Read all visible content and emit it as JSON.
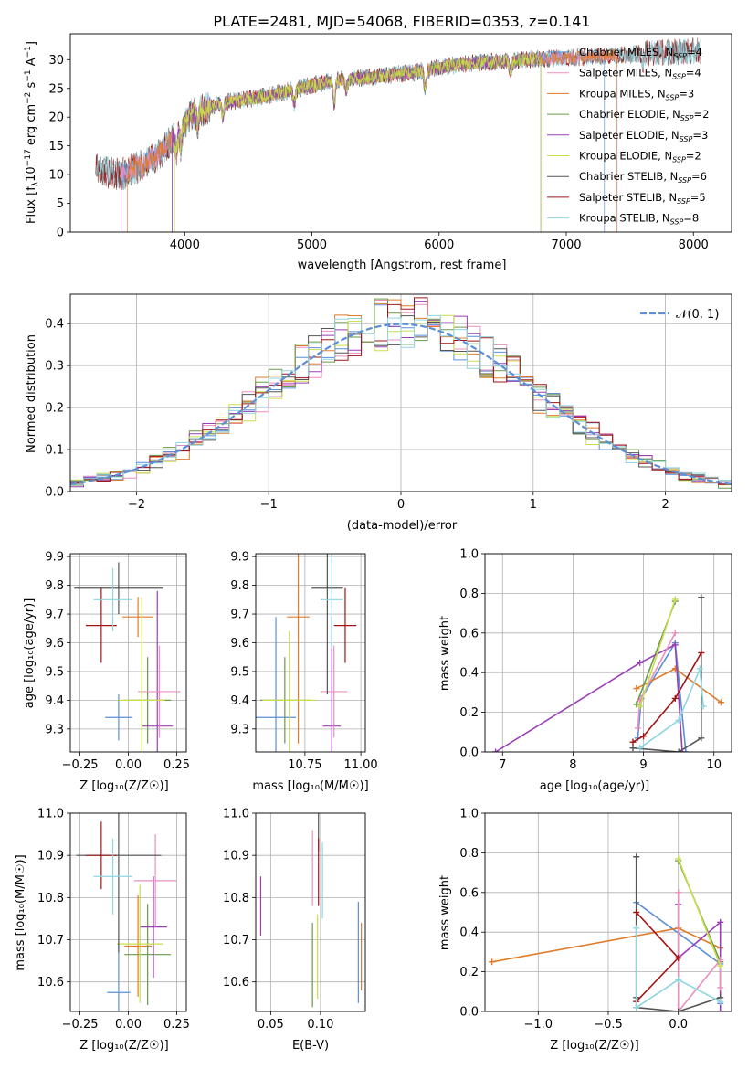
{
  "figure_title": "PLATE=2481, MJD=54068, FIBERID=0353, z=0.141",
  "colors": {
    "c1": "#5b8fd6",
    "c2": "#e07b2a",
    "c3": "#6a9a4a",
    "c4": "#9b3fb8",
    "c5": "#e98fc0",
    "c6": "#c9dd4a",
    "c7": "#555555",
    "c8": "#a31515",
    "c9": "#8fd6df",
    "grid": "#b0b0b0",
    "gaussian": "#5b8fd6"
  },
  "chart_data": [
    {
      "id": "spectrum",
      "type": "line",
      "xlabel": "wavelength [Angstrom, rest frame]",
      "ylabel": "Flux [f_λ10^-17 erg cm^-2 s^-1 A^-1]",
      "xlim": [
        3100,
        8300
      ],
      "ylim": [
        0,
        34.5
      ],
      "xticks": [
        4000,
        5000,
        6000,
        7000,
        8000
      ],
      "yticks": [
        0,
        5,
        10,
        15,
        20,
        25,
        30
      ],
      "grid": false,
      "legend_position": "top-right",
      "continuum": [
        [
          3300,
          10.8
        ],
        [
          3500,
          10.0
        ],
        [
          3650,
          11.5
        ],
        [
          3800,
          13.5
        ],
        [
          3950,
          17.5
        ],
        [
          4050,
          20.5
        ],
        [
          4300,
          22.5
        ],
        [
          4600,
          23.5
        ],
        [
          4900,
          25.0
        ],
        [
          5200,
          26.5
        ],
        [
          5500,
          27.0
        ],
        [
          5800,
          27.8
        ],
        [
          6100,
          29.0
        ],
        [
          6400,
          29.6
        ],
        [
          6700,
          30.0
        ],
        [
          7000,
          30.3
        ],
        [
          7300,
          30.6
        ],
        [
          7600,
          31.1
        ],
        [
          7900,
          31.4
        ],
        [
          8050,
          31.5
        ]
      ],
      "series": [
        {
          "name": "Chabrier MILES",
          "nssp": "4",
          "color": "c1",
          "range": [
            3500,
            7300
          ]
        },
        {
          "name": "Salpeter MILES",
          "nssp": "4",
          "color": "c5",
          "range": [
            3500,
            7400
          ]
        },
        {
          "name": "Kroupa MILES",
          "nssp": "3",
          "color": "c2",
          "range": [
            3550,
            7400
          ]
        },
        {
          "name": "Chabrier ELODIE",
          "nssp": "2",
          "color": "c3",
          "range": [
            3900,
            6800
          ]
        },
        {
          "name": "Salpeter ELODIE",
          "nssp": "3",
          "color": "c4",
          "range": [
            3900,
            6800
          ]
        },
        {
          "name": "Kroupa ELODIE",
          "nssp": "2",
          "color": "c6",
          "range": [
            3920,
            6800
          ]
        },
        {
          "name": "Chabrier STELIB",
          "nssp": "6",
          "color": "c7",
          "range": [
            3300,
            8050
          ]
        },
        {
          "name": "Salpeter STELIB",
          "nssp": "5",
          "color": "c8",
          "range": [
            3300,
            8050
          ]
        },
        {
          "name": "Kroupa STELIB",
          "nssp": "8",
          "color": "c9",
          "range": [
            3300,
            8050
          ]
        }
      ]
    },
    {
      "id": "residuals",
      "type": "histogram",
      "xlabel": "(data-model)/error",
      "ylabel": "Normed distribution",
      "xlim": [
        -2.5,
        2.5
      ],
      "ylim": [
        0,
        0.47
      ],
      "xticks": [
        -2,
        -1,
        0,
        1,
        2
      ],
      "yticks": [
        0.0,
        0.1,
        0.2,
        0.3,
        0.4
      ],
      "grid": true,
      "legend": "𝒩(0, 1)",
      "legend_position": "top-right",
      "bin_width": 0.1,
      "series_colors": [
        "c1",
        "c5",
        "c2",
        "c3",
        "c4",
        "c6",
        "c7",
        "c8",
        "c9"
      ]
    },
    {
      "id": "age_vs_Z",
      "type": "errorbar",
      "xlabel": "Z [log₁₀(Z/Z☉)]",
      "ylabel": "age  [log₁₀(age/yr)]",
      "xlim": [
        -0.3,
        0.3
      ],
      "ylim": [
        9.22,
        9.91
      ],
      "xticks": [
        -0.25,
        0.0,
        0.25
      ],
      "xticklabels": [
        "−0.25",
        "0.00",
        "0.25"
      ],
      "yticks": [
        9.3,
        9.4,
        9.5,
        9.6,
        9.7,
        9.8,
        9.9
      ],
      "grid": true,
      "points": [
        {
          "color": "c1",
          "x": -0.05,
          "xerr": 0.07,
          "y": 9.34,
          "yerr": 0.08
        },
        {
          "color": "c2",
          "x": 0.05,
          "xerr": 0.08,
          "y": 9.69,
          "yerr": 0.07
        },
        {
          "color": "c3",
          "x": 0.1,
          "xerr": 0.12,
          "y": 9.4,
          "yerr": 0.15
        },
        {
          "color": "c4",
          "x": 0.15,
          "xerr": 0.08,
          "y": 9.31,
          "yerr": 0.47
        },
        {
          "color": "c5",
          "x": 0.16,
          "xerr": 0.11,
          "y": 9.43,
          "yerr": 0.16
        },
        {
          "color": "c6",
          "x": 0.07,
          "xerr": 0.12,
          "y": 9.4,
          "yerr": 0.36
        },
        {
          "color": "c7",
          "x": -0.05,
          "xerr": 0.23,
          "y": 9.79,
          "yerr": 0.09
        },
        {
          "color": "c8",
          "x": -0.14,
          "xerr": 0.08,
          "y": 9.66,
          "yerr": 0.13
        },
        {
          "color": "c9",
          "x": -0.08,
          "xerr": 0.1,
          "y": 9.75,
          "yerr": 0.11
        }
      ]
    },
    {
      "id": "age_vs_mass",
      "type": "errorbar",
      "xlabel": "mass [log₁₀(M/M☉)]",
      "xlim": [
        10.53,
        11.02
      ],
      "ylim": [
        9.22,
        9.91
      ],
      "xticks": [
        10.75,
        11.0
      ],
      "xticklabels": [
        "10.75",
        "11.00"
      ],
      "yticks": [
        9.3,
        9.4,
        9.5,
        9.6,
        9.7,
        9.8,
        9.9
      ],
      "grid": true,
      "points": [
        {
          "color": "c1",
          "x": 10.62,
          "xerr": 0.09,
          "y": 9.34,
          "yerr": 0.35
        },
        {
          "color": "c2",
          "x": 10.72,
          "xerr": 0.05,
          "y": 9.69,
          "yerr": 0.44
        },
        {
          "color": "c3",
          "x": 10.66,
          "xerr": 0.11,
          "y": 9.4,
          "yerr": 0.15
        },
        {
          "color": "c4",
          "x": 10.87,
          "xerr": 0.04,
          "y": 9.31,
          "yerr": 0.38
        },
        {
          "color": "c5",
          "x": 10.88,
          "xerr": 0.06,
          "y": 9.43,
          "yerr": 0.16
        },
        {
          "color": "c6",
          "x": 10.68,
          "xerr": 0.12,
          "y": 9.4,
          "yerr": 0.24
        },
        {
          "color": "c7",
          "x": 10.85,
          "xerr": 0.07,
          "y": 9.79,
          "yerr": 0.37
        },
        {
          "color": "c8",
          "x": 10.93,
          "xerr": 0.05,
          "y": 9.66,
          "yerr": 0.13
        },
        {
          "color": "c9",
          "x": 10.87,
          "xerr": 0.05,
          "y": 9.75,
          "yerr": 0.17
        }
      ]
    },
    {
      "id": "massweight_vs_age",
      "type": "line",
      "xlabel": "age  [log₁₀(age/yr)]",
      "ylabel": "mass weight",
      "xlim": [
        6.75,
        10.25
      ],
      "ylim": [
        0,
        1.0
      ],
      "xticks": [
        7,
        8,
        9,
        10
      ],
      "yticks": [
        0.0,
        0.2,
        0.4,
        0.6,
        0.8,
        1.0
      ],
      "grid": true,
      "series": [
        {
          "color": "c1",
          "points": [
            [
              9.6,
              0.0
            ],
            [
              9.45,
              0.55
            ],
            [
              8.97,
              0.27
            ],
            [
              8.92,
              0.07
            ]
          ]
        },
        {
          "color": "c2",
          "points": [
            [
              10.1,
              0.25
            ],
            [
              9.45,
              0.42
            ],
            [
              8.9,
              0.32
            ]
          ]
        },
        {
          "color": "c3",
          "points": [
            [
              9.45,
              0.76
            ],
            [
              8.9,
              0.24
            ]
          ]
        },
        {
          "color": "c4",
          "points": [
            [
              6.9,
              0.0
            ],
            [
              8.95,
              0.45
            ],
            [
              9.45,
              0.54
            ],
            [
              9.55,
              0.0
            ]
          ]
        },
        {
          "color": "c5",
          "points": [
            [
              9.45,
              0.6
            ],
            [
              8.95,
              0.26
            ],
            [
              8.92,
              0.12
            ]
          ]
        },
        {
          "color": "c6",
          "points": [
            [
              9.45,
              0.77
            ],
            [
              8.95,
              0.23
            ]
          ]
        },
        {
          "color": "c7",
          "points": [
            [
              9.82,
              0.78
            ],
            [
              9.82,
              0.07
            ],
            [
              9.5,
              0.0
            ],
            [
              8.85,
              0.02
            ]
          ]
        },
        {
          "color": "c8",
          "points": [
            [
              9.82,
              0.5
            ],
            [
              9.45,
              0.27
            ],
            [
              9.0,
              0.08
            ],
            [
              8.85,
              0.05
            ]
          ]
        },
        {
          "color": "c9",
          "points": [
            [
              9.85,
              0.23
            ],
            [
              9.8,
              0.42
            ],
            [
              9.5,
              0.16
            ],
            [
              8.95,
              0.02
            ]
          ]
        }
      ]
    },
    {
      "id": "mass_vs_Z",
      "type": "errorbar",
      "xlabel": "Z [log₁₀(Z/Z☉)]",
      "ylabel": "mass [log₁₀(M/M☉)]",
      "xlim": [
        -0.3,
        0.3
      ],
      "ylim": [
        10.53,
        11.0
      ],
      "xticks": [
        -0.25,
        0.0,
        0.25
      ],
      "xticklabels": [
        "−0.25",
        "0.00",
        "0.25"
      ],
      "yticks": [
        10.6,
        10.7,
        10.8,
        10.9,
        11.0
      ],
      "grid": true,
      "points": [
        {
          "color": "c1",
          "x": -0.05,
          "xerr": 0.06,
          "y": 10.575,
          "yerr": 0.12
        },
        {
          "color": "c2",
          "x": 0.05,
          "xerr": 0.07,
          "y": 10.685,
          "yerr": 0.12
        },
        {
          "color": "c3",
          "x": 0.1,
          "xerr": 0.12,
          "y": 10.665,
          "yerr": 0.12
        },
        {
          "color": "c4",
          "x": 0.13,
          "xerr": 0.07,
          "y": 10.73,
          "yerr": 0.12
        },
        {
          "color": "c5",
          "x": 0.14,
          "xerr": 0.11,
          "y": 10.84,
          "yerr": 0.11
        },
        {
          "color": "c6",
          "x": 0.06,
          "xerr": 0.12,
          "y": 10.69,
          "yerr": 0.14
        },
        {
          "color": "c7",
          "x": -0.05,
          "xerr": 0.22,
          "y": 10.9,
          "yerr": 0.23
        },
        {
          "color": "c8",
          "x": -0.14,
          "xerr": 0.08,
          "y": 10.9,
          "yerr": 0.08
        },
        {
          "color": "c9",
          "x": -0.08,
          "xerr": 0.1,
          "y": 10.85,
          "yerr": 0.09
        }
      ]
    },
    {
      "id": "mass_vs_ebv",
      "type": "errorbar",
      "xlabel": "E(B-V)",
      "xlim": [
        0.035,
        0.145
      ],
      "ylim": [
        10.53,
        11.0
      ],
      "xticks": [
        0.05,
        0.1
      ],
      "xticklabels": [
        "0.05",
        "0.10"
      ],
      "yticks": [
        10.6,
        10.7,
        10.8,
        10.9,
        11.0
      ],
      "grid": true,
      "points": [
        {
          "color": "c1",
          "x": 0.138,
          "xerr": 0,
          "y": 10.67,
          "yerr": 0.12
        },
        {
          "color": "c2",
          "x": 0.141,
          "xerr": 0,
          "y": 10.66,
          "yerr": 0.08
        },
        {
          "color": "c3",
          "x": 0.092,
          "xerr": 0,
          "y": 10.64,
          "yerr": 0.1
        },
        {
          "color": "c4",
          "x": 0.04,
          "xerr": 0,
          "y": 10.78,
          "yerr": 0.07
        },
        {
          "color": "c5",
          "x": 0.092,
          "xerr": 0,
          "y": 10.87,
          "yerr": 0.09
        },
        {
          "color": "c6",
          "x": 0.097,
          "xerr": 0,
          "y": 10.66,
          "yerr": 0.1
        },
        {
          "color": "c7",
          "x": 0.098,
          "xerr": 0,
          "y": 10.99,
          "yerr": 0.08
        },
        {
          "color": "c8",
          "x": 0.098,
          "xerr": 0,
          "y": 10.86,
          "yerr": 0.08
        },
        {
          "color": "c9",
          "x": 0.102,
          "xerr": 0,
          "y": 10.84,
          "yerr": 0.09
        }
      ]
    },
    {
      "id": "massweight_vs_Z",
      "type": "line",
      "xlabel": "Z [log₁₀(Z/Z☉)]",
      "ylabel": "mass weight",
      "xlim": [
        -1.38,
        0.38
      ],
      "ylim": [
        0,
        1.0
      ],
      "xticks": [
        -1.0,
        -0.5,
        0.0
      ],
      "xticklabels": [
        "−1.0",
        "−0.5",
        "0.0"
      ],
      "yticks": [
        0.0,
        0.2,
        0.4,
        0.6,
        0.8,
        1.0
      ],
      "grid": true,
      "series": [
        {
          "color": "c1",
          "points": [
            [
              -0.3,
              0.55
            ],
            [
              0.3,
              0.24
            ],
            [
              0.3,
              0.04
            ]
          ]
        },
        {
          "color": "c2",
          "points": [
            [
              -1.33,
              0.25
            ],
            [
              0.0,
              0.42
            ],
            [
              0.3,
              0.32
            ]
          ]
        },
        {
          "color": "c3",
          "points": [
            [
              0.0,
              0.76
            ],
            [
              0.3,
              0.25
            ]
          ]
        },
        {
          "color": "c4",
          "points": [
            [
              0.0,
              0.54
            ],
            [
              0.0,
              0.27
            ],
            [
              0.3,
              0.45
            ],
            [
              0.3,
              0.0
            ]
          ]
        },
        {
          "color": "c5",
          "points": [
            [
              0.0,
              0.6
            ],
            [
              0.0,
              0.0
            ],
            [
              0.3,
              0.26
            ],
            [
              0.3,
              0.12
            ]
          ]
        },
        {
          "color": "c6",
          "points": [
            [
              0.0,
              0.77
            ],
            [
              0.3,
              0.23
            ]
          ]
        },
        {
          "color": "c7",
          "points": [
            [
              -0.3,
              0.78
            ],
            [
              -0.3,
              0.07
            ],
            [
              -0.3,
              0.02
            ],
            [
              0.0,
              0.0
            ],
            [
              0.3,
              0.07
            ]
          ]
        },
        {
          "color": "c8",
          "points": [
            [
              -0.3,
              0.5
            ],
            [
              0.0,
              0.27
            ],
            [
              -0.3,
              0.05
            ]
          ]
        },
        {
          "color": "c9",
          "points": [
            [
              -0.3,
              0.42
            ],
            [
              -0.3,
              0.02
            ],
            [
              0.0,
              0.16
            ],
            [
              0.3,
              0.05
            ]
          ]
        }
      ]
    }
  ]
}
